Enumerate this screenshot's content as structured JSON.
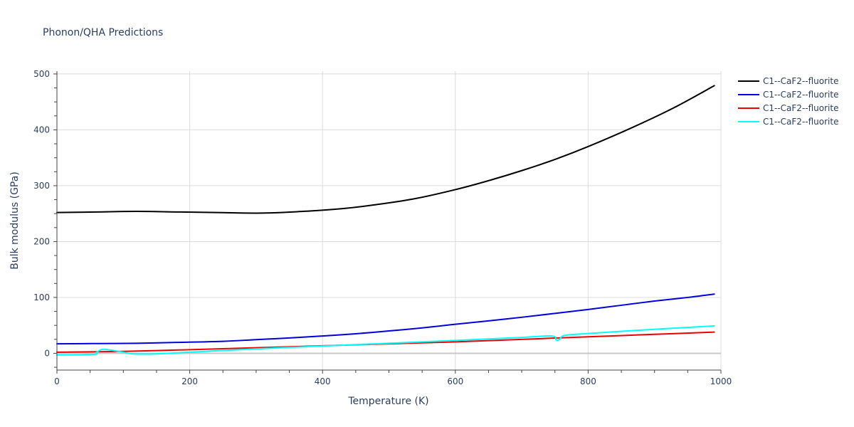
{
  "chart_data": {
    "type": "line",
    "title": "Phonon/QHA Predictions",
    "xlabel": "Temperature (K)",
    "ylabel": "Bulk modulus (GPa)",
    "xlim": [
      0,
      1000
    ],
    "ylim": [
      -30,
      505
    ],
    "xticks": [
      0,
      200,
      400,
      600,
      800,
      1000
    ],
    "yticks": [
      0,
      100,
      200,
      300,
      400,
      500
    ],
    "grid": true,
    "legend_position": "top-right-outside",
    "series": [
      {
        "name": "C1--CaF2--fluorite",
        "color": "#000000",
        "x": [
          0,
          60,
          120,
          180,
          240,
          310,
          370,
          430,
          480,
          540,
          600,
          650,
          700,
          750,
          800,
          870,
          930,
          990
        ],
        "y": [
          252,
          253,
          254,
          253,
          252,
          251,
          254,
          259,
          266,
          277,
          293,
          309,
          327,
          347,
          370,
          406,
          440,
          479
        ]
      },
      {
        "name": "C1--CaF2--fluorite",
        "color": "#0000dd",
        "x": [
          0,
          60,
          120,
          180,
          250,
          300,
          350,
          400,
          450,
          500,
          550,
          600,
          650,
          700,
          750,
          800,
          850,
          900,
          950,
          990
        ],
        "y": [
          17,
          17.5,
          18,
          19.5,
          21.5,
          24.5,
          27.5,
          31,
          35,
          40,
          45.5,
          52,
          58,
          64.5,
          71.5,
          78.5,
          86,
          93.5,
          100,
          106
        ]
      },
      {
        "name": "C1--CaF2--fluorite",
        "color": "#ee0000",
        "x": [
          0,
          100,
          200,
          300,
          400,
          500,
          600,
          700,
          800,
          900,
          990
        ],
        "y": [
          2,
          3.5,
          6.5,
          10,
          13.5,
          17,
          20.5,
          25,
          29.5,
          34,
          38
        ]
      },
      {
        "name": "C1--CaF2--fluorite",
        "color": "#00ffff",
        "x": [
          0,
          55,
          60,
          68,
          80,
          100,
          115,
          150,
          200,
          300,
          400,
          500,
          600,
          700,
          745,
          752,
          757,
          765,
          800,
          900,
          990
        ],
        "y": [
          -3,
          -2,
          2,
          7,
          6,
          2,
          -1,
          -1,
          2,
          8,
          13,
          18,
          23,
          28.5,
          31,
          24,
          25,
          32,
          35.5,
          43,
          49
        ]
      }
    ]
  }
}
